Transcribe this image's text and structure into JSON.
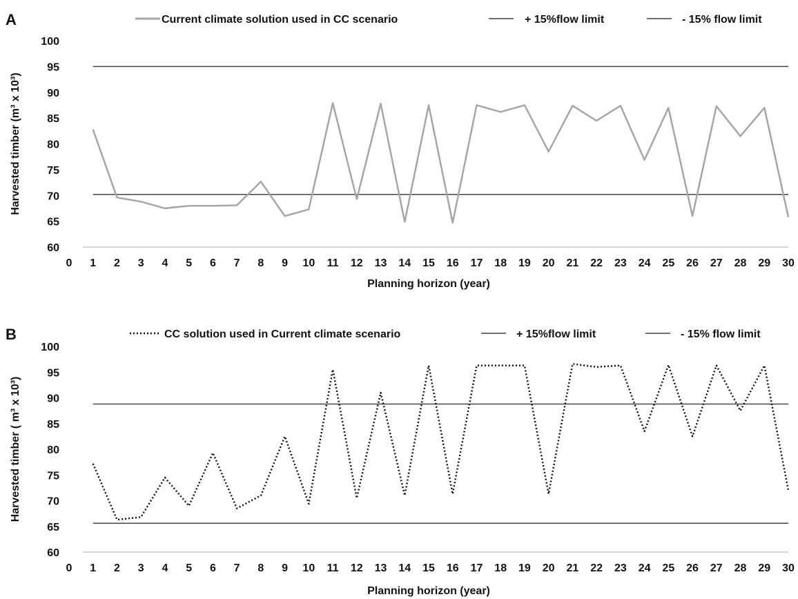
{
  "colors": {
    "series_a": "#a6a6a6",
    "series_b": "#111111",
    "limit": "#444444",
    "axis": "#c8c8c8",
    "text": "#111111"
  },
  "chart_data": [
    {
      "panel": "A",
      "type": "line",
      "xlabel": "Planning horizon (year)",
      "ylabel": "Harvested timber (m³ x 10³)",
      "ylim": [
        60,
        100
      ],
      "xlim": [
        0,
        30
      ],
      "yticks": [
        60,
        65,
        70,
        75,
        80,
        85,
        90,
        95,
        100
      ],
      "xticks": [
        0,
        1,
        2,
        3,
        4,
        5,
        6,
        7,
        8,
        9,
        10,
        11,
        12,
        13,
        14,
        15,
        16,
        17,
        18,
        19,
        20,
        21,
        22,
        23,
        24,
        25,
        26,
        27,
        28,
        29,
        30
      ],
      "grid": false,
      "legend_position": "top",
      "series": [
        {
          "name": "Current climate solution used in CC scenario",
          "style": "solid",
          "x": [
            1,
            2,
            3,
            4,
            5,
            6,
            7,
            8,
            9,
            10,
            11,
            12,
            13,
            14,
            15,
            16,
            17,
            18,
            19,
            20,
            21,
            22,
            23,
            24,
            25,
            26,
            27,
            28,
            29,
            30
          ],
          "values": [
            82.8,
            69.6,
            68.8,
            67.5,
            68.0,
            68.0,
            68.1,
            72.7,
            66.0,
            67.3,
            87.9,
            69.3,
            87.8,
            64.9,
            87.5,
            64.7,
            87.5,
            86.2,
            87.5,
            78.5,
            87.4,
            84.5,
            87.4,
            76.9,
            87.0,
            66.0,
            87.3,
            81.5,
            87.0,
            65.8
          ]
        }
      ],
      "limits": [
        {
          "name": "+ 15%flow limit",
          "value": 95.0
        },
        {
          "name": "- 15% flow limit",
          "value": 70.2
        }
      ]
    },
    {
      "panel": "B",
      "type": "line",
      "xlabel": "Planning horizon (year)",
      "ylabel": "Harvested timber ( m³ x 10³)",
      "ylim": [
        60,
        100
      ],
      "xlim": [
        0,
        30
      ],
      "yticks": [
        60,
        65,
        70,
        75,
        80,
        85,
        90,
        95,
        100
      ],
      "xticks": [
        0,
        1,
        2,
        3,
        4,
        5,
        6,
        7,
        8,
        9,
        10,
        11,
        12,
        13,
        14,
        15,
        16,
        17,
        18,
        19,
        20,
        21,
        22,
        23,
        24,
        25,
        26,
        27,
        28,
        29,
        30
      ],
      "grid": false,
      "legend_position": "top",
      "series": [
        {
          "name": "CC solution used in Current climate scenario",
          "style": "dotted",
          "x": [
            1,
            2,
            3,
            4,
            5,
            6,
            7,
            8,
            9,
            10,
            11,
            12,
            13,
            14,
            15,
            16,
            17,
            18,
            19,
            20,
            21,
            22,
            23,
            24,
            25,
            26,
            27,
            28,
            29,
            30
          ],
          "values": [
            77.2,
            66.3,
            66.8,
            74.5,
            69.0,
            79.3,
            68.5,
            71.0,
            82.5,
            69.4,
            95.5,
            70.5,
            91.0,
            71.0,
            96.3,
            71.3,
            96.3,
            96.3,
            96.3,
            71.3,
            96.6,
            96.0,
            96.3,
            83.5,
            96.4,
            82.5,
            96.3,
            87.5,
            96.3,
            72.0
          ]
        }
      ],
      "limits": [
        {
          "name": "+ 15%flow limit",
          "value": 88.8
        },
        {
          "name": "- 15% flow limit",
          "value": 65.6
        }
      ]
    }
  ]
}
